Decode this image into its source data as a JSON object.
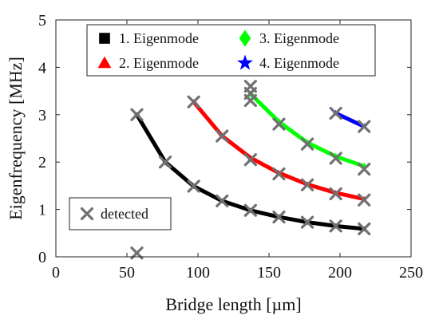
{
  "chart_data": {
    "type": "line",
    "xlabel": "Bridge length [µm]",
    "ylabel": "Eigenfrequency [MHz]",
    "xlim": [
      0,
      250
    ],
    "ylim": [
      0,
      5
    ],
    "xticks": [
      "0",
      "50",
      "100",
      "150",
      "200",
      "250"
    ],
    "yticks": [
      "0",
      "1",
      "2",
      "3",
      "4",
      "5"
    ],
    "grid": false,
    "legend_position": "top",
    "series": [
      {
        "name": "1. Eigenmode",
        "color": "#000000",
        "marker": "square",
        "x": [
          57,
          77,
          97,
          117,
          137,
          157,
          177,
          197,
          217
        ],
        "y": [
          3.0,
          2.0,
          1.49,
          1.18,
          0.98,
          0.84,
          0.73,
          0.65,
          0.59
        ]
      },
      {
        "name": "2. Eigenmode",
        "color": "#ff0000",
        "marker": "triangle",
        "x": [
          97,
          117,
          137,
          157,
          177,
          197,
          217
        ],
        "y": [
          3.27,
          2.55,
          2.09,
          1.77,
          1.53,
          1.35,
          1.22
        ]
      },
      {
        "name": "3. Eigenmode",
        "color": "#00ff00",
        "marker": "diamond",
        "x": [
          137,
          157,
          177,
          197,
          217
        ],
        "y": [
          3.44,
          2.85,
          2.41,
          2.12,
          1.91
        ]
      },
      {
        "name": "4. Eigenmode",
        "color": "#0000ff",
        "marker": "star",
        "x": [
          197,
          217
        ],
        "y": [
          3.03,
          2.75
        ]
      }
    ],
    "detected": {
      "name": "detected",
      "color": "#707070",
      "marker": "x",
      "x": [
        57,
        57,
        77,
        97,
        97,
        117,
        117,
        137,
        137,
        137,
        137,
        137,
        157,
        157,
        157,
        177,
        177,
        177,
        197,
        197,
        197,
        197,
        217,
        217,
        217,
        217
      ],
      "y": [
        0.08,
        3.0,
        2.0,
        1.49,
        3.27,
        1.18,
        2.55,
        0.98,
        2.05,
        3.3,
        3.45,
        3.6,
        0.84,
        1.75,
        2.8,
        0.73,
        1.52,
        2.38,
        0.65,
        1.33,
        2.08,
        3.03,
        0.59,
        1.2,
        1.85,
        2.75
      ]
    }
  }
}
